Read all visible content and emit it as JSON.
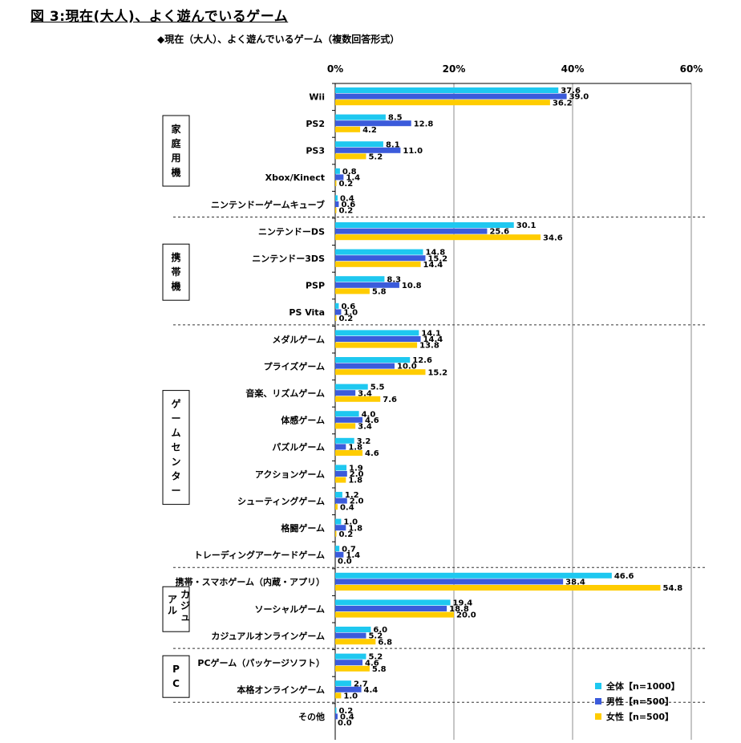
{
  "figure_title": "図 3:現在(大人)、よく遊んでいるゲーム",
  "chart_data": {
    "type": "bar",
    "orientation": "horizontal",
    "title": "◆現在（大人）、よく遊んでいるゲーム（複数回答形式）",
    "xlim": [
      0,
      60
    ],
    "x_ticks": [
      0,
      20,
      40,
      60
    ],
    "x_tick_labels": [
      "0%",
      "20%",
      "40%",
      "60%"
    ],
    "grid": true,
    "legend_position": "bottom-right",
    "series": [
      {
        "name": "全体【n=1000】",
        "color": "#1ec8f0"
      },
      {
        "name": "男性【n=500】",
        "color": "#3b5bdb"
      },
      {
        "name": "女性【n=500】",
        "color": "#ffcc00"
      }
    ],
    "groups": [
      {
        "label": "家庭用機",
        "vertical": "家\n庭\n用\n機",
        "categories": [
          {
            "label": "Wii",
            "values": [
              37.6,
              39.0,
              36.2
            ],
            "labels": [
              "37.6",
              "39.0",
              "36.2"
            ]
          },
          {
            "label": "PS2",
            "values": [
              8.5,
              12.8,
              4.2
            ],
            "labels": [
              "8.5",
              "12.8",
              "4.2"
            ]
          },
          {
            "label": "PS3",
            "values": [
              8.1,
              11.0,
              5.2
            ],
            "labels": [
              "8.1",
              "11.0",
              "5.2"
            ]
          },
          {
            "label": "Xbox/Kinect",
            "values": [
              0.8,
              1.4,
              0.2
            ],
            "labels": [
              "0.8",
              "1.4",
              "0.2"
            ]
          },
          {
            "label": "ニンテンドーゲームキューブ",
            "values": [
              0.4,
              0.6,
              0.2
            ],
            "labels": [
              "0.4",
              "0.6",
              "0.2"
            ]
          }
        ]
      },
      {
        "label": "携帯機",
        "vertical": "携\n帯\n機",
        "categories": [
          {
            "label": "ニンテンドーDS",
            "values": [
              30.1,
              25.6,
              34.6
            ],
            "labels": [
              "30.1",
              "25.6",
              "34.6"
            ]
          },
          {
            "label": "ニンテンドー3DS",
            "values": [
              14.8,
              15.2,
              14.4
            ],
            "labels": [
              "14.8",
              "15.2",
              "14.4"
            ]
          },
          {
            "label": "PSP",
            "values": [
              8.3,
              10.8,
              5.8
            ],
            "labels": [
              "8.3",
              "10.8",
              "5.8"
            ]
          },
          {
            "label": "PS Vita",
            "values": [
              0.6,
              1.0,
              0.2
            ],
            "labels": [
              "0.6",
              "1.0",
              "0.2"
            ]
          }
        ]
      },
      {
        "label": "ゲームセンター",
        "vertical": "ゲ\nー\nム\nセ\nン\nタ\nー",
        "categories": [
          {
            "label": "メダルゲーム",
            "values": [
              14.1,
              14.4,
              13.8
            ],
            "labels": [
              "14.1",
              "14.4",
              "13.8"
            ]
          },
          {
            "label": "プライズゲーム",
            "values": [
              12.6,
              10.0,
              15.2
            ],
            "labels": [
              "12.6",
              "10.0",
              "15.2"
            ]
          },
          {
            "label": "音楽、リズムゲーム",
            "values": [
              5.5,
              3.4,
              7.6
            ],
            "labels": [
              "5.5",
              "3.4",
              "7.6"
            ]
          },
          {
            "label": "体感ゲーム",
            "values": [
              4.0,
              4.6,
              3.4
            ],
            "labels": [
              "4.0",
              "4.6",
              "3.4"
            ]
          },
          {
            "label": "パズルゲーム",
            "values": [
              3.2,
              1.8,
              4.6
            ],
            "labels": [
              "3.2",
              "1.8",
              "4.6"
            ]
          },
          {
            "label": "アクションゲーム",
            "values": [
              1.9,
              2.0,
              1.8
            ],
            "labels": [
              "1.9",
              "2.0",
              "1.8"
            ]
          },
          {
            "label": "シューティングゲーム",
            "values": [
              1.2,
              2.0,
              0.4
            ],
            "labels": [
              "1.2",
              "2.0",
              "0.4"
            ]
          },
          {
            "label": "格闘ゲーム",
            "values": [
              1.0,
              1.8,
              0.2
            ],
            "labels": [
              "1.0",
              "1.8",
              "0.2"
            ]
          },
          {
            "label": "トレーディングアーケードゲーム",
            "values": [
              0.7,
              1.4,
              0.0
            ],
            "labels": [
              "0.7",
              "1.4",
              "0.0"
            ]
          }
        ]
      },
      {
        "label": "カジュアル",
        "vertical": "カジュアル",
        "categories": [
          {
            "label": "携帯・スマホゲーム（内蔵・アプリ）",
            "values": [
              46.6,
              38.4,
              54.8
            ],
            "labels": [
              "46.6",
              "38.4",
              "54.8"
            ]
          },
          {
            "label": "ソーシャルゲーム",
            "values": [
              19.4,
              18.8,
              20.0
            ],
            "labels": [
              "19.4",
              "18.8",
              "20.0"
            ]
          },
          {
            "label": "カジュアルオンラインゲーム",
            "values": [
              6.0,
              5.2,
              6.8
            ],
            "labels": [
              "6.0",
              "5.2",
              "6.8"
            ]
          }
        ]
      },
      {
        "label": "PC",
        "vertical": "P\nC",
        "categories": [
          {
            "label": "PCゲーム（パッケージソフト）",
            "values": [
              5.2,
              4.6,
              5.8
            ],
            "labels": [
              "5.2",
              "4.6",
              "5.8"
            ]
          },
          {
            "label": "本格オンラインゲーム",
            "values": [
              2.7,
              4.4,
              1.0
            ],
            "labels": [
              "2.7",
              "4.4",
              "1.0"
            ]
          }
        ]
      },
      {
        "label": "その他",
        "vertical": "",
        "categories": [
          {
            "label": "その他",
            "values": [
              0.2,
              0.4,
              0.0
            ],
            "labels": [
              "0.2",
              "0.4",
              "0.0"
            ]
          }
        ]
      }
    ]
  }
}
